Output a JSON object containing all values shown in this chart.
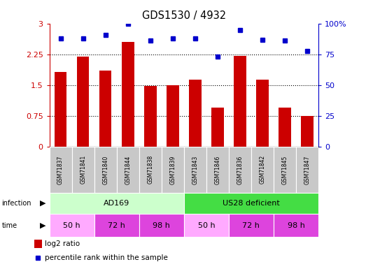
{
  "title": "GDS1530 / 4932",
  "samples": [
    "GSM71837",
    "GSM71841",
    "GSM71840",
    "GSM71844",
    "GSM71838",
    "GSM71839",
    "GSM71843",
    "GSM71846",
    "GSM71836",
    "GSM71842",
    "GSM71845",
    "GSM71847"
  ],
  "log2_ratio": [
    1.82,
    2.2,
    1.85,
    2.55,
    1.48,
    1.5,
    1.63,
    0.95,
    2.22,
    1.63,
    0.95,
    0.75
  ],
  "percentile_rank": [
    88,
    88,
    91,
    100,
    86,
    88,
    88,
    73,
    95,
    87,
    86,
    78
  ],
  "bar_color": "#cc0000",
  "dot_color": "#0000cc",
  "ylim_left": [
    0,
    3
  ],
  "ylim_right": [
    0,
    100
  ],
  "yticks_left": [
    0,
    0.75,
    1.5,
    2.25,
    3
  ],
  "yticks_right": [
    0,
    25,
    50,
    75,
    100
  ],
  "ytick_labels_left": [
    "0",
    "0.75",
    "1.5",
    "2.25",
    "3"
  ],
  "ytick_labels_right": [
    "0",
    "25",
    "50",
    "75",
    "100%"
  ],
  "infection_groups": [
    {
      "label": "AD169",
      "start": 0,
      "end": 6,
      "color": "#ccffcc"
    },
    {
      "label": "US28 deficient",
      "start": 6,
      "end": 12,
      "color": "#44dd44"
    }
  ],
  "time_groups": [
    {
      "label": "50 h",
      "start": 0,
      "end": 2,
      "color": "#ffaaff"
    },
    {
      "label": "72 h",
      "start": 2,
      "end": 4,
      "color": "#dd44dd"
    },
    {
      "label": "98 h",
      "start": 4,
      "end": 6,
      "color": "#dd44dd"
    },
    {
      "label": "50 h",
      "start": 6,
      "end": 8,
      "color": "#ffaaff"
    },
    {
      "label": "72 h",
      "start": 8,
      "end": 10,
      "color": "#dd44dd"
    },
    {
      "label": "98 h",
      "start": 10,
      "end": 12,
      "color": "#dd44dd"
    }
  ],
  "legend_bar_label": "log2 ratio",
  "legend_dot_label": "percentile rank within the sample",
  "bar_color_legend": "#cc0000",
  "dot_color_legend": "#0000cc",
  "sample_box_color": "#c8c8c8",
  "grid_yticks": [
    0.75,
    1.5,
    2.25
  ]
}
